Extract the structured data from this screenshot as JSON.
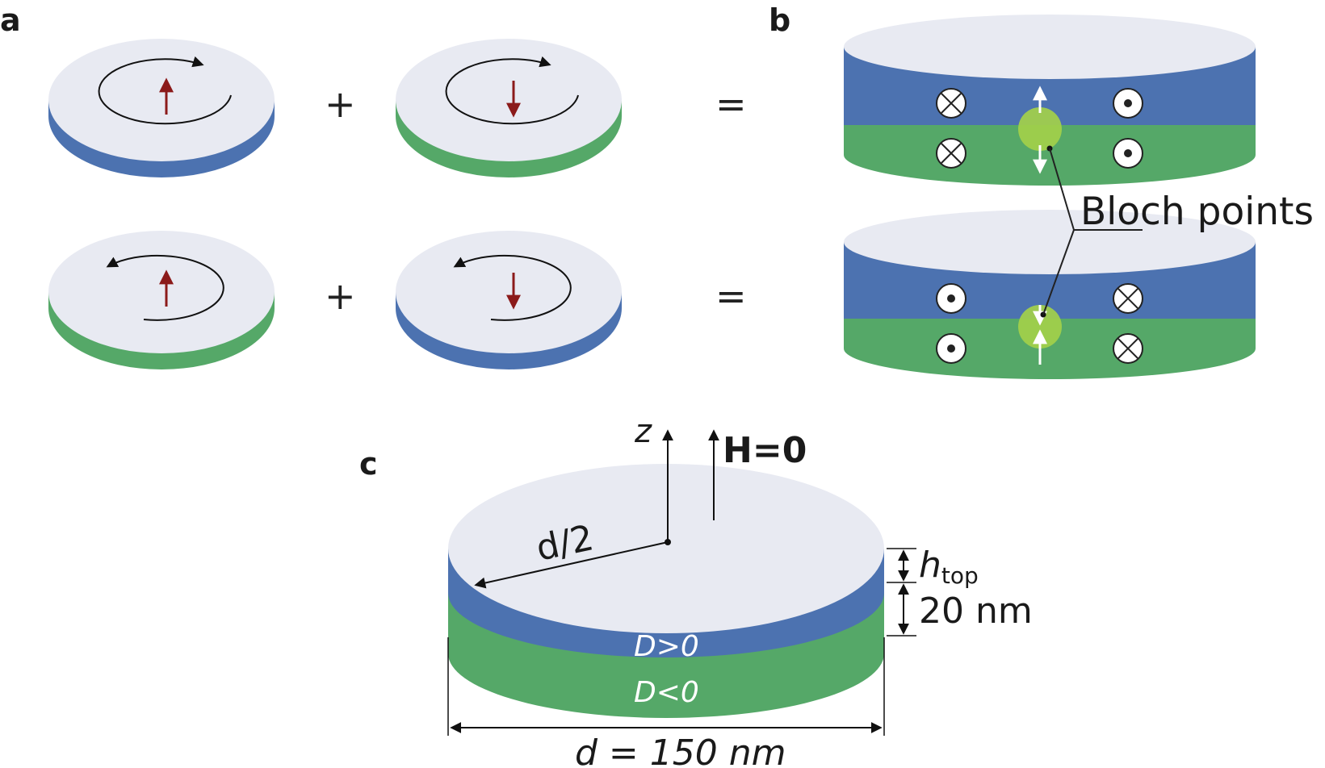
{
  "panels": {
    "a": {
      "label": "a",
      "plus": "+",
      "equals": "="
    },
    "b": {
      "label": "b",
      "bloch_label": "Bloch points"
    },
    "c": {
      "label": "c",
      "z_axis": "z",
      "field": "H=0",
      "radius": "d/2",
      "h_top_main": "h",
      "h_top_sub": "top",
      "thickness": "20 nm",
      "top_layer": "D>0",
      "bottom_layer": "D<0",
      "diameter": "d = 150 nm"
    }
  },
  "colors": {
    "top_face": "#e8eaf2",
    "blue_layer": "#4c72b0",
    "green_layer": "#55a868",
    "magnetization_arrow": "#8b1a1a",
    "bloch_point": "#a3d04a"
  }
}
